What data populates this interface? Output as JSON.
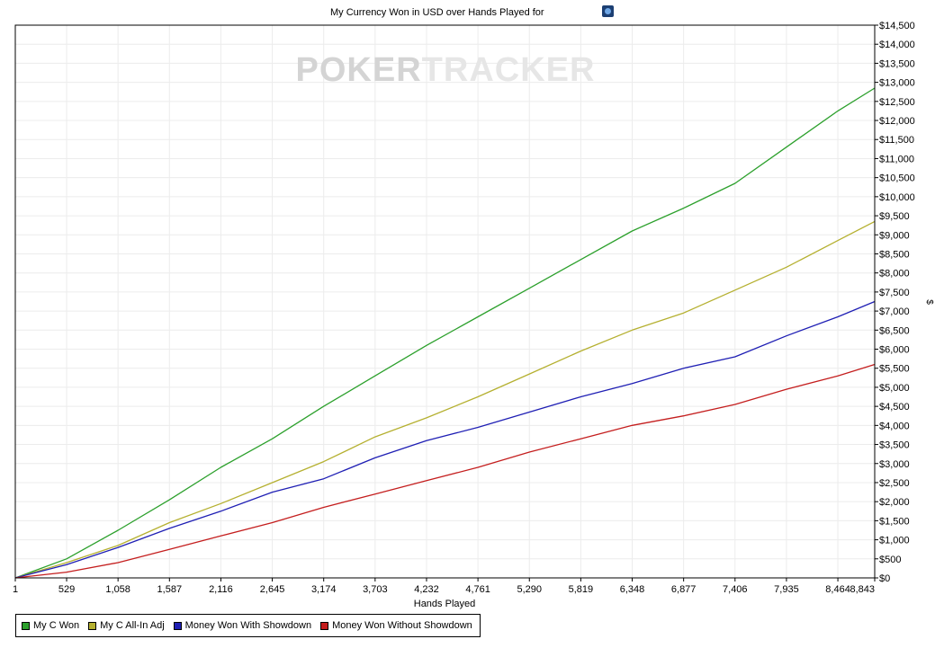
{
  "header": {
    "title": "My Currency Won in USD over Hands Played for",
    "icon": "poker-site-icon"
  },
  "watermark": {
    "text_left": "POKER",
    "text_right": "TRACKER",
    "color": "#dddddd"
  },
  "chart_data": {
    "type": "line",
    "title": "My Currency Won in USD over Hands Played for",
    "xlabel": "Hands Played",
    "ylabel": "$",
    "xlim": [
      1,
      8843
    ],
    "ylim": [
      0,
      14500
    ],
    "x_ticks": [
      "1",
      "529",
      "1,058",
      "1,587",
      "2,116",
      "2,645",
      "3,174",
      "3,703",
      "4,232",
      "4,761",
      "5,290",
      "5,819",
      "6,348",
      "6,877",
      "7,406",
      "7,935",
      "8,464",
      "8,843"
    ],
    "y_ticks": [
      "$0",
      "$500",
      "$1,000",
      "$1,500",
      "$2,000",
      "$2,500",
      "$3,000",
      "$3,500",
      "$4,000",
      "$4,500",
      "$5,000",
      "$5,500",
      "$6,000",
      "$6,500",
      "$7,000",
      "$7,500",
      "$8,000",
      "$8,500",
      "$9,000",
      "$9,500",
      "$10,000",
      "$10,500",
      "$11,000",
      "$11,500",
      "$12,000",
      "$12,500",
      "$13,000",
      "$13,500",
      "$14,000",
      "$14,500"
    ],
    "grid": true,
    "y_axis_side": "right",
    "legend_position": "bottom-left",
    "x": [
      1,
      529,
      1058,
      1587,
      2116,
      2645,
      3174,
      3703,
      4232,
      4761,
      5290,
      5819,
      6348,
      6877,
      7406,
      7935,
      8464,
      8843
    ],
    "series": [
      {
        "name": "My C Won",
        "color": "#2ca02c",
        "values": [
          0,
          500,
          1250,
          2050,
          2900,
          3650,
          4500,
          5300,
          6100,
          6850,
          7600,
          8350,
          9100,
          9700,
          10350,
          11300,
          12250,
          12850
        ]
      },
      {
        "name": "My C All-In Adj",
        "color": "#b5b030",
        "values": [
          0,
          400,
          850,
          1450,
          1950,
          2500,
          3050,
          3700,
          4200,
          4750,
          5350,
          5950,
          6500,
          6950,
          7550,
          8150,
          8850,
          9350
        ]
      },
      {
        "name": "Money Won With Showdown",
        "color": "#1f1fb4",
        "values": [
          0,
          350,
          800,
          1300,
          1750,
          2250,
          2600,
          3150,
          3600,
          3950,
          4350,
          4750,
          5100,
          5500,
          5800,
          6350,
          6850,
          7250
        ]
      },
      {
        "name": "Money Won Without Showdown",
        "color": "#c41e1e",
        "values": [
          0,
          150,
          400,
          750,
          1100,
          1450,
          1850,
          2200,
          2550,
          2900,
          3300,
          3650,
          4000,
          4250,
          4550,
          4950,
          5300,
          5600
        ]
      }
    ]
  }
}
